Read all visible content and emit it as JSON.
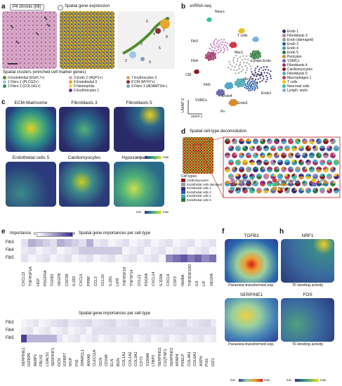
{
  "panel_a": {
    "letter": "a",
    "chip": "P4 chronic (MI)",
    "header": "Spatial gene expression",
    "tile_numbers": [
      "1",
      "3",
      "4",
      "5",
      "6",
      "7",
      "8",
      "2",
      "9"
    ],
    "clusters_title": "Spatial clusters (enriched cell marker genes)",
    "clusters": [
      {
        "label": "0 Endothelial (EGFL7+)",
        "color": "#4f8f2e"
      },
      {
        "label": "1 Fibro 1 (PLCG2+)",
        "color": "#9ec6e6"
      },
      {
        "label": "2 Fibro 2 (COL1A1+)",
        "color": "#2f8a6a"
      },
      {
        "label": "3 Endo 2 (AQP1+)",
        "color": "#d9a3c6"
      },
      {
        "label": "4 Endothelial 3",
        "color": "#e8a82c"
      },
      {
        "label": "5 Neutrophils",
        "color": "#f2d84c"
      },
      {
        "label": "6 Erythrocytes 1",
        "color": "#6a3d9a"
      },
      {
        "label": "7 Erythrocytes 2",
        "color": "#e0a070"
      },
      {
        "label": "8 CM (MYH7+)",
        "color": "#8b2f2f"
      },
      {
        "label": "9 Fibro 3 (ADAMTS4+)",
        "color": "#7aa0c8"
      }
    ]
  },
  "panel_b": {
    "letter": "b",
    "title": "snRNA-seq",
    "umap1": "UMAP-1",
    "umap2": "UMAP-2",
    "labels": [
      "Neuro",
      "T cells",
      "Mac1",
      "Lymph.Endo",
      "Fib3",
      "Fib4",
      "dEndo",
      "Endo5",
      "Fib5",
      "VSMCs",
      "CM",
      "Pe",
      "Endo4",
      "Endo3",
      "Endo1"
    ],
    "legend": [
      {
        "label": "Endo 1",
        "color": "#3a2a7a"
      },
      {
        "label": "Fibroblasts 3",
        "color": "#c07ab8"
      },
      {
        "label": "Endo (damaged)",
        "color": "#9a9a9a"
      },
      {
        "label": "Endo 3",
        "color": "#2a5fa8"
      },
      {
        "label": "Endo 4",
        "color": "#3aa0b0"
      },
      {
        "label": "Endo 5",
        "color": "#2f7a3a"
      },
      {
        "label": "Pericytes",
        "color": "#d88a2a"
      },
      {
        "label": "VSMCs",
        "color": "#6a6ab0"
      },
      {
        "label": "Fibroblasts 4",
        "color": "#a0306a"
      },
      {
        "label": "Cardiomyocytes",
        "color": "#8a1a1a"
      },
      {
        "label": "Fibroblasts 5",
        "color": "#4fa8c8"
      },
      {
        "label": "Macrophages 1",
        "color": "#d03a4a"
      },
      {
        "label": "T cells",
        "color": "#e8c020"
      },
      {
        "label": "Neuronal cells",
        "color": "#3ac0a0"
      },
      {
        "label": "Lymph. endo.",
        "color": "#7ab0e0"
      }
    ]
  },
  "panel_c": {
    "letter": "c",
    "titles": [
      "ECM-Matrisome",
      "Fibroblasts 3",
      "Fibroblasts 5",
      "Endothelial cells 5",
      "Cardiomyocytes",
      "Hypoxia pathway"
    ],
    "cbar_min": "min",
    "cbar_max": "max"
  },
  "panel_d": {
    "letter": "d",
    "title": "Spatial cell-type deconvolution",
    "legend_title": "Cell types",
    "legend": [
      {
        "label": "Cardiomyocytes",
        "color": "#8a1a1a"
      },
      {
        "label": "Endothelial cells damaged",
        "color": "#9a9a9a"
      },
      {
        "label": "Endothelial cells 1",
        "color": "#3a2a7a"
      },
      {
        "label": "Endothelial cells 3",
        "color": "#2a5fa8"
      },
      {
        "label": "Endothelial cells 4",
        "color": "#3aa0b0"
      },
      {
        "label": "Endothelial cells 5",
        "color": "#2f7a3a"
      },
      {
        "label": "Fibroblasts 3",
        "color": "#c07ab8"
      },
      {
        "label": "Fibroblasts 4",
        "color": "#a0306a"
      },
      {
        "label": "Fibroblasts 5",
        "color": "#4fa8c8"
      },
      {
        "label": "Macrophages 1",
        "color": "#d03a4a"
      },
      {
        "label": "Neuronal cells",
        "color": "#3ac0a0"
      },
      {
        "label": "Pericytes",
        "color": "#d88a2a"
      },
      {
        "label": "T cells",
        "color": "#e8c020"
      },
      {
        "label": "VSMCs",
        "color": "#6a6ab0"
      }
    ]
  },
  "panel_e": {
    "letter": "e",
    "importance_label": "Importance",
    "scale_min": "0",
    "scale_max": "4",
    "title": "Spatial gene importances per cell-type",
    "rows": [
      "Fib3",
      "Fib4",
      "Fib5"
    ],
    "top_genes": [
      "CXCL12",
      "TNFRSF1A",
      "HGF",
      "PDGFRA",
      "TGFB3",
      "VEGFB",
      "CSF3R",
      "IL1R2",
      "CXCL5",
      "PPBP",
      "CCL3",
      "CCL20",
      "IL1R1",
      "LIFR",
      "TNFRSF19",
      "TNFSF14",
      "CCL21",
      "PDGFA",
      "CXCL14",
      "IL11RA",
      "CXCL9",
      "CSF3",
      "INHBA",
      "TNFRSF10D",
      "IL6",
      "LIF",
      "VEGFA"
    ],
    "bottom_genes": [
      "SERPINE1",
      "IGFBP6",
      "AEBP1",
      "FBLN1",
      "LGALS1",
      "SERPINF1",
      "DCN",
      "IGFBP7",
      "MGP",
      "FN1",
      "SPARCL1",
      "ANXA5",
      "CLEC11A",
      "OGN",
      "CD248",
      "ELN",
      "BGN",
      "COL1A1",
      "COL1A2",
      "COL3A1",
      "CST3",
      "S100A6",
      "LTBP3",
      "SERPING1",
      "C1QTNF1",
      "SERPINF2",
      "MFAP4",
      "PRELP",
      "COL4A1",
      "COL6A1",
      "ASPN",
      "PI16",
      "IGF1"
    ]
  },
  "panel_f": {
    "letter": "f",
    "title1": "TGFB3",
    "cap1": "Paraview-transformed exp.",
    "title2": "SERPINE1",
    "cap2": "Paraview-transformed exp."
  },
  "panel_h": {
    "letter": "h",
    "title1": "NRF1",
    "cap1": "TF-binding activity",
    "title2": "FOS",
    "cap2": "TF-binding activity"
  },
  "colors": {
    "viridis_low": "#3b2a7a",
    "viridis_high": "#f0e020",
    "heat_low": "#2a3a9a",
    "heat_high": "#d01a1a"
  }
}
